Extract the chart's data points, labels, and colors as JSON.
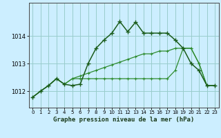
{
  "xlabel": "Graphe pression niveau de la mer (hPa)",
  "background_color": "#cceeff",
  "grid_color": "#99cccc",
  "line_color_dark": "#1a5c1a",
  "line_color_mid": "#2d8b2d",
  "x_ticks": [
    0,
    1,
    2,
    3,
    4,
    5,
    6,
    7,
    8,
    9,
    10,
    11,
    12,
    13,
    14,
    15,
    16,
    17,
    18,
    19,
    20,
    21,
    22,
    23
  ],
  "ylim": [
    1011.4,
    1015.2
  ],
  "yticks": [
    1012,
    1013,
    1014
  ],
  "series1": [
    1011.78,
    1012.0,
    1012.2,
    1012.45,
    1012.25,
    1012.2,
    1012.25,
    1013.0,
    1013.55,
    1013.85,
    1014.1,
    1014.52,
    1014.15,
    1014.5,
    1014.1,
    1014.1,
    1014.1,
    1014.1,
    1013.85,
    1013.55,
    1013.0,
    1012.75,
    1012.2,
    1012.2
  ],
  "series2": [
    1011.78,
    1012.0,
    1012.2,
    1012.45,
    1012.25,
    1012.45,
    1012.45,
    1012.45,
    1012.45,
    1012.45,
    1012.45,
    1012.45,
    1012.45,
    1012.45,
    1012.45,
    1012.45,
    1012.45,
    1012.45,
    1012.75,
    1013.55,
    1013.55,
    1013.0,
    1012.2,
    1012.2
  ],
  "series3": [
    1011.78,
    1012.0,
    1012.2,
    1012.45,
    1012.25,
    1012.45,
    1012.55,
    1012.65,
    1012.75,
    1012.85,
    1012.95,
    1013.05,
    1013.15,
    1013.25,
    1013.35,
    1013.35,
    1013.45,
    1013.45,
    1013.55,
    1013.55,
    1013.55,
    1013.0,
    1012.2,
    1012.2
  ]
}
